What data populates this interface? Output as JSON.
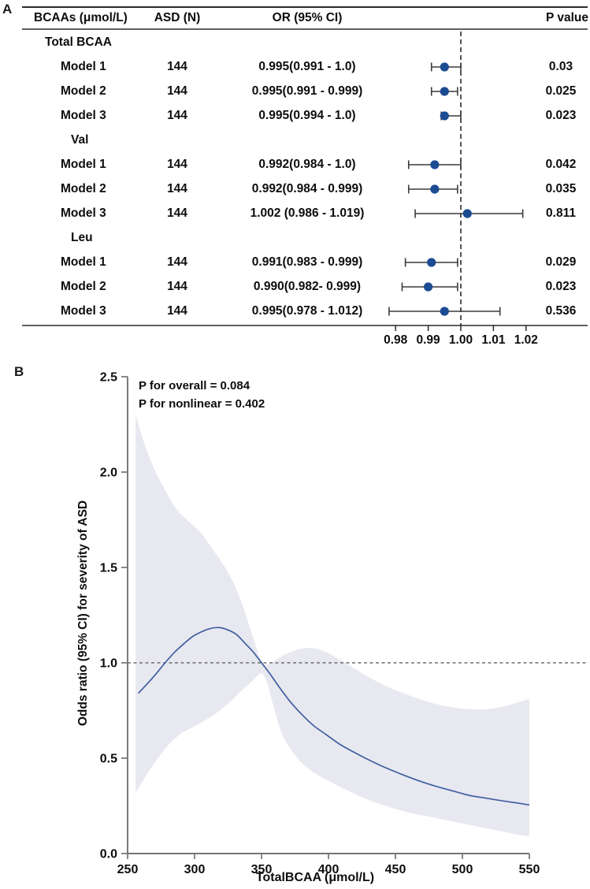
{
  "panel_a": {
    "label": "A",
    "columns": {
      "bcaa": "BCAAs (μmol/L)",
      "asd_n": "ASD (N)",
      "or_ci": "OR (95% CI)",
      "p": "P value"
    }
  },
  "panel_b": {
    "label": "B",
    "annotations": [
      "P for overall = 0.084",
      "P for nonlinear = 0.402"
    ],
    "x_axis_title": "TotalBCAA  (μmol/L)",
    "y_axis_title": "Odds ratio (95% CI) for severity of ASD"
  },
  "chart_data": [
    {
      "type": "forest",
      "title": "Forest plot of BCAAs association with ASD",
      "columns": [
        "BCAAs (μmol/L)",
        "ASD (N)",
        "OR (95% CI)",
        "P value"
      ],
      "rows": [
        {
          "group": "Total BCAA"
        },
        {
          "label": "Model 1",
          "n": "144",
          "or_text": "0.995(0.991 - 1.0)",
          "or": 0.995,
          "lo": 0.991,
          "hi": 1.0,
          "p": "0.03"
        },
        {
          "label": "Model 2",
          "n": "144",
          "or_text": "0.995(0.991 - 0.999)",
          "or": 0.995,
          "lo": 0.991,
          "hi": 0.999,
          "p": "0.025"
        },
        {
          "label": "Model 3",
          "n": "144",
          "or_text": "0.995(0.994 - 1.0)",
          "or": 0.995,
          "lo": 0.994,
          "hi": 1.0,
          "p": "0.023"
        },
        {
          "group": "Val"
        },
        {
          "label": "Model 1",
          "n": "144",
          "or_text": "0.992(0.984 - 1.0)",
          "or": 0.992,
          "lo": 0.984,
          "hi": 1.0,
          "p": "0.042"
        },
        {
          "label": "Model 2",
          "n": "144",
          "or_text": "0.992(0.984 - 0.999)",
          "or": 0.992,
          "lo": 0.984,
          "hi": 0.999,
          "p": "0.035"
        },
        {
          "label": "Model 3",
          "n": "144",
          "or_text": "1.002 (0.986 - 1.019)",
          "or": 1.002,
          "lo": 0.986,
          "hi": 1.019,
          "p": "0.811"
        },
        {
          "group": "Leu"
        },
        {
          "label": "Model 1",
          "n": "144",
          "or_text": "0.991(0.983 - 0.999)",
          "or": 0.991,
          "lo": 0.983,
          "hi": 0.999,
          "p": "0.029"
        },
        {
          "label": "Model 2",
          "n": "144",
          "or_text": "0.990(0.982- 0.999)",
          "or": 0.99,
          "lo": 0.982,
          "hi": 0.999,
          "p": "0.023"
        },
        {
          "label": "Model 3",
          "n": "144",
          "or_text": "0.995(0.978 - 1.012)",
          "or": 0.995,
          "lo": 0.978,
          "hi": 1.012,
          "p": "0.536"
        }
      ],
      "x_tick_labels": [
        "0.98",
        "0.99",
        "1.00",
        "1.01",
        "1.02"
      ],
      "x_tick_values": [
        0.98,
        0.99,
        1.0,
        1.01,
        1.02
      ],
      "ref_line": 1.0,
      "colors": {
        "dot": "#1b4b92",
        "error_bar": "#3a3a3a",
        "rule": "#2a2a2a",
        "dash": "#1a1a1a"
      }
    },
    {
      "type": "area+line",
      "title": "Restricted cubic spline of Total BCAA vs odds of ASD severity",
      "xlabel": "TotalBCAA  (μmol/L)",
      "ylabel": "Odds ratio (95% CI) for severity of ASD",
      "x_ticks": [
        250,
        300,
        350,
        400,
        450,
        500,
        550
      ],
      "y_ticks": [
        "0.0",
        "0.5",
        "1.0",
        "1.5",
        "2.0",
        "2.5"
      ],
      "y_tick_values": [
        0.0,
        0.5,
        1.0,
        1.5,
        2.0,
        2.5
      ],
      "xlim": [
        250,
        550
      ],
      "ylim": [
        0,
        2.5
      ],
      "ref_line": 1.0,
      "p_overall": "0.084",
      "p_nonlinear": "0.402",
      "curve": [
        [
          258,
          0.84
        ],
        [
          264,
          0.885
        ],
        [
          271,
          0.94
        ],
        [
          278,
          1.0
        ],
        [
          285,
          1.055
        ],
        [
          292,
          1.1
        ],
        [
          299,
          1.14
        ],
        [
          306,
          1.165
        ],
        [
          312,
          1.18
        ],
        [
          318,
          1.185
        ],
        [
          324,
          1.175
        ],
        [
          331,
          1.15
        ],
        [
          338,
          1.1
        ],
        [
          344,
          1.055
        ],
        [
          350,
          1.0
        ],
        [
          356,
          0.945
        ],
        [
          363,
          0.875
        ],
        [
          371,
          0.8
        ],
        [
          380,
          0.73
        ],
        [
          389,
          0.67
        ],
        [
          398,
          0.625
        ],
        [
          408,
          0.575
        ],
        [
          418,
          0.535
        ],
        [
          429,
          0.495
        ],
        [
          441,
          0.455
        ],
        [
          453,
          0.42
        ],
        [
          466,
          0.385
        ],
        [
          479,
          0.355
        ],
        [
          492,
          0.33
        ],
        [
          505,
          0.305
        ],
        [
          518,
          0.29
        ],
        [
          531,
          0.275
        ],
        [
          541,
          0.265
        ],
        [
          550,
          0.255
        ]
      ],
      "band_upper": [
        [
          256,
          2.3
        ],
        [
          262,
          2.16
        ],
        [
          269,
          2.03
        ],
        [
          277,
          1.92
        ],
        [
          286,
          1.81
        ],
        [
          295,
          1.745
        ],
        [
          305,
          1.68
        ],
        [
          313,
          1.6
        ],
        [
          321,
          1.52
        ],
        [
          329,
          1.42
        ],
        [
          336,
          1.3
        ],
        [
          342,
          1.17
        ],
        [
          347,
          1.06
        ],
        [
          351,
          1.0
        ],
        [
          356,
          0.995
        ],
        [
          364,
          1.03
        ],
        [
          373,
          1.06
        ],
        [
          383,
          1.078
        ],
        [
          393,
          1.07
        ],
        [
          404,
          1.035
        ],
        [
          416,
          0.985
        ],
        [
          430,
          0.925
        ],
        [
          444,
          0.875
        ],
        [
          458,
          0.835
        ],
        [
          472,
          0.8
        ],
        [
          486,
          0.775
        ],
        [
          500,
          0.76
        ],
        [
          514,
          0.755
        ],
        [
          527,
          0.765
        ],
        [
          538,
          0.785
        ],
        [
          550,
          0.81
        ]
      ],
      "band_lower": [
        [
          256,
          0.32
        ],
        [
          263,
          0.4
        ],
        [
          271,
          0.485
        ],
        [
          280,
          0.565
        ],
        [
          289,
          0.625
        ],
        [
          298,
          0.66
        ],
        [
          307,
          0.695
        ],
        [
          316,
          0.735
        ],
        [
          325,
          0.785
        ],
        [
          333,
          0.84
        ],
        [
          340,
          0.885
        ],
        [
          346,
          0.925
        ],
        [
          350,
          0.945
        ],
        [
          354,
          0.9
        ],
        [
          359,
          0.77
        ],
        [
          365,
          0.63
        ],
        [
          372,
          0.545
        ],
        [
          380,
          0.475
        ],
        [
          389,
          0.425
        ],
        [
          399,
          0.385
        ],
        [
          410,
          0.345
        ],
        [
          422,
          0.305
        ],
        [
          434,
          0.27
        ],
        [
          447,
          0.24
        ],
        [
          460,
          0.215
        ],
        [
          474,
          0.195
        ],
        [
          488,
          0.175
        ],
        [
          502,
          0.155
        ],
        [
          516,
          0.135
        ],
        [
          530,
          0.115
        ],
        [
          540,
          0.1
        ],
        [
          550,
          0.09
        ]
      ],
      "colors": {
        "curve": "#3f5fa0",
        "band": "#e8e8f1",
        "axis": "#737373",
        "dash": "#6e6e6e"
      }
    }
  ]
}
